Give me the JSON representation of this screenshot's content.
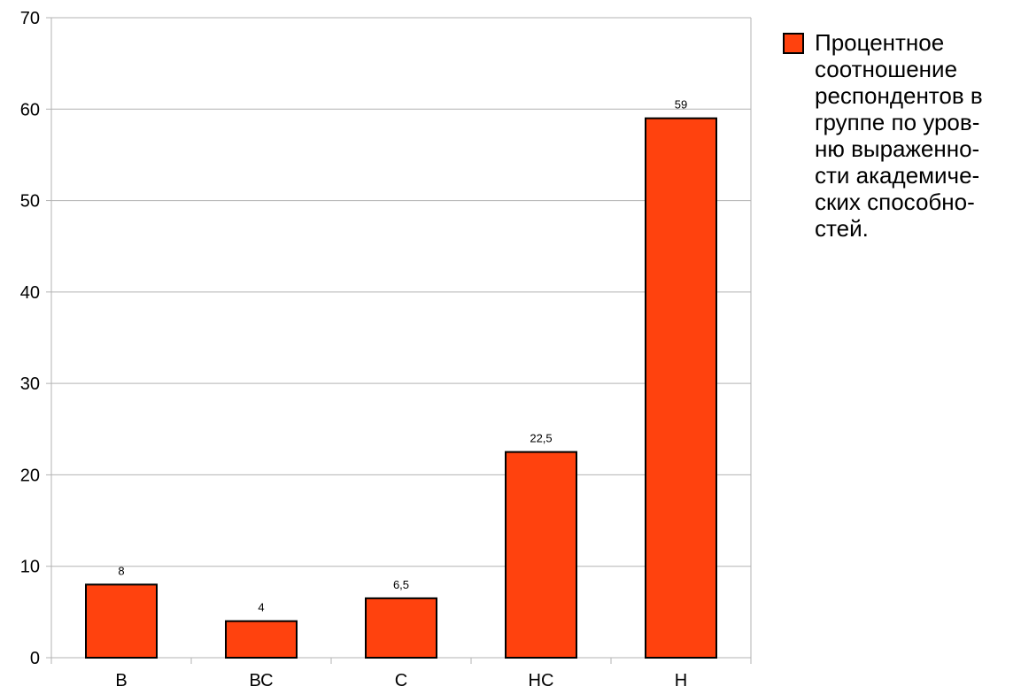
{
  "chart_data": {
    "type": "bar",
    "categories": [
      "В",
      "ВС",
      "С",
      "НС",
      "Н"
    ],
    "series": [
      {
        "name": "Процентное соотношение респондентов в группе по уровню выраженности академических способностей.",
        "values": [
          8,
          4,
          6.5,
          22.5,
          59
        ],
        "value_labels": [
          "8",
          "4",
          "6,5",
          "22,5",
          "59"
        ],
        "color": "#ff420e"
      }
    ],
    "ylim": [
      0,
      70
    ],
    "yticks": [
      0,
      10,
      20,
      30,
      40,
      50,
      60,
      70
    ],
    "title": "",
    "xlabel": "",
    "ylabel": "",
    "grid": true,
    "legend_position": "right"
  },
  "legend": {
    "text": "Процентное\nсоотношение\nреспондентов в\nгруппе по уров-\nню выраженно-\nсти академиче-\nских способно-\nстей."
  }
}
